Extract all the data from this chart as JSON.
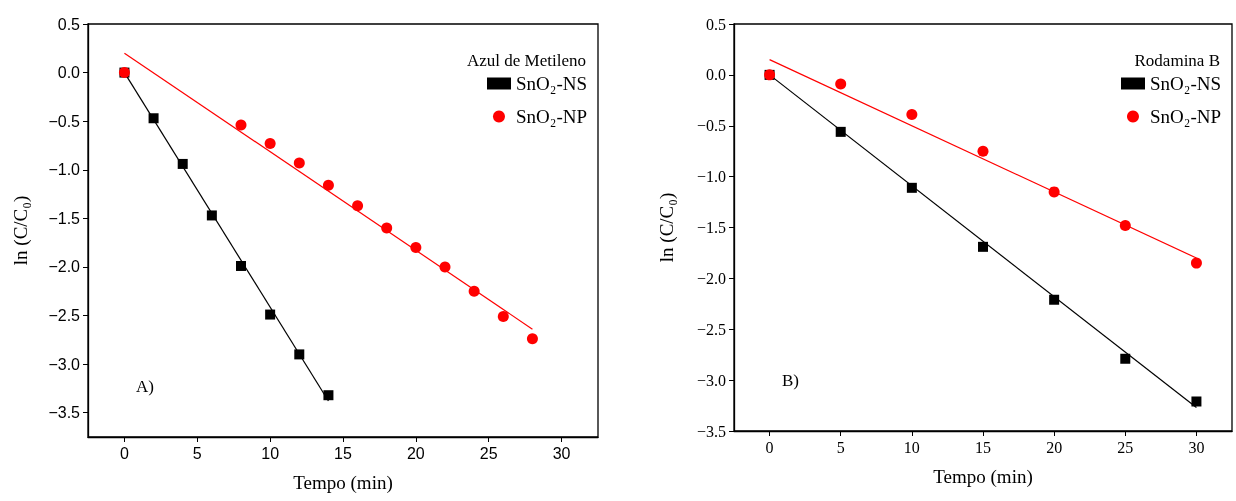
{
  "chart_data": [
    {
      "type": "scatter",
      "xlabel": "Tempo (min)",
      "ylabel": "ln (C/C₀)",
      "legend_title": "Azul de Metileno",
      "legend": "top right",
      "annotations": [
        "A)"
      ],
      "xlim": [
        -2.5,
        32.5
      ],
      "xticks": [
        0,
        5,
        10,
        15,
        20,
        25,
        30
      ],
      "ylim": [
        -3.75,
        0.5
      ],
      "yticks": [
        {
          "value": 0.5,
          "label": "0.5"
        },
        {
          "value": 0,
          "label": "0.0"
        },
        {
          "value": -0.5,
          "label": "−0.5"
        },
        {
          "value": -1,
          "label": "−1.0"
        },
        {
          "value": -1.5,
          "label": "−1.5"
        },
        {
          "value": -2,
          "label": "−2.0"
        },
        {
          "value": -2.5,
          "label": "−2.5"
        },
        {
          "value": -3,
          "label": "−3.0"
        },
        {
          "value": -3.5,
          "label": "−3.5"
        }
      ],
      "series": [
        {
          "name": "SnO₂-NS",
          "color": "#000000",
          "marker": "square",
          "x": [
            0,
            2,
            4,
            6,
            8,
            10,
            12,
            14
          ],
          "values": [
            0,
            -0.47,
            -0.94,
            -1.47,
            -1.99,
            -2.49,
            -2.9,
            -3.32
          ]
        },
        {
          "name": "SnO₂-NP",
          "color": "#ff0000",
          "marker": "circle",
          "x": [
            0,
            8,
            10,
            12,
            14,
            16,
            18,
            20,
            22,
            24,
            26,
            28
          ],
          "values": [
            0,
            -0.54,
            -0.73,
            -0.93,
            -1.16,
            -1.37,
            -1.6,
            -1.8,
            -2.0,
            -2.25,
            -2.51,
            -2.74
          ]
        },
        {
          "type": "line",
          "color": "#000000",
          "x": [
            0,
            14
          ],
          "values": [
            0.0,
            -3.38
          ]
        },
        {
          "type": "line",
          "color": "#ff0000",
          "x": [
            0,
            28
          ],
          "values": [
            0.2,
            -2.64
          ]
        }
      ]
    },
    {
      "type": "scatter",
      "xlabel": "Tempo (min)",
      "ylabel": "ln (C/C₀)",
      "legend_title": "Rodamina B",
      "legend": "top right",
      "annotations": [
        "B)"
      ],
      "xlim": [
        -2.5,
        32.5
      ],
      "xticks": [
        0,
        5,
        10,
        15,
        20,
        25,
        30
      ],
      "ylim": [
        -3.5,
        0.5
      ],
      "yticks": [
        {
          "value": 0.5,
          "label": "0.5"
        },
        {
          "value": 0,
          "label": "0.0"
        },
        {
          "value": -0.5,
          "label": "−0.5"
        },
        {
          "value": -1,
          "label": "−1.0"
        },
        {
          "value": -1.5,
          "label": "−1.5"
        },
        {
          "value": -2,
          "label": "−2.0"
        },
        {
          "value": -2.5,
          "label": "−2.5"
        },
        {
          "value": -3,
          "label": "−3.0"
        },
        {
          "value": -3.5,
          "label": "−3.5"
        }
      ],
      "series": [
        {
          "name": "SnO₂-NS",
          "color": "#000000",
          "marker": "square",
          "x": [
            0,
            5,
            10,
            15,
            20,
            25,
            30
          ],
          "values": [
            0,
            -0.56,
            -1.11,
            -1.69,
            -2.21,
            -2.79,
            -3.21
          ]
        },
        {
          "name": "SnO₂-NP",
          "color": "#ff0000",
          "marker": "circle",
          "x": [
            0,
            5,
            10,
            15,
            20,
            25,
            30
          ],
          "values": [
            0,
            -0.09,
            -0.39,
            -0.75,
            -1.15,
            -1.48,
            -1.85
          ]
        },
        {
          "type": "line",
          "color": "#000000",
          "x": [
            0,
            30
          ],
          "values": [
            0.0,
            -3.27
          ]
        },
        {
          "type": "line",
          "color": "#ff0000",
          "x": [
            0,
            30
          ],
          "values": [
            0.15,
            -1.8
          ]
        }
      ]
    }
  ]
}
